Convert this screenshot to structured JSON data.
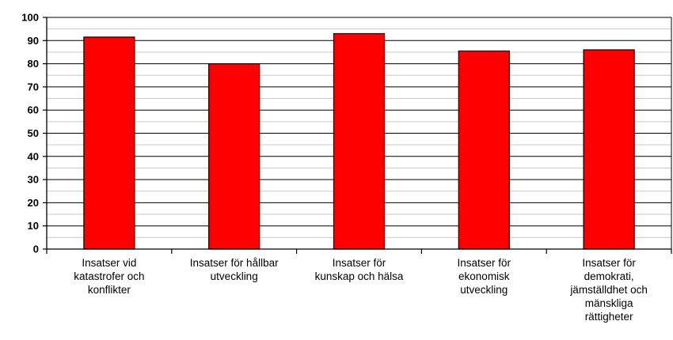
{
  "chart_data": {
    "type": "bar",
    "title": "",
    "xlabel": "",
    "ylabel": "",
    "ylim": [
      0,
      100
    ],
    "ytick_step": 10,
    "minor_grid_step": 5,
    "grid": true,
    "bar_color": "#ff0000",
    "categories": [
      "Insatser vid katastrofer och konflikter",
      "Insatser för hållbar utveckling",
      "Insatser för kunskap och hälsa",
      "Insatser för ekonomisk utveckling",
      "Insatser för demokrati, jämställdhet och mänskliga rättigheter"
    ],
    "category_label_lines": [
      [
        "Insatser vid",
        "katastrofer och",
        "konflikter"
      ],
      [
        "Insatser för hållbar",
        "utveckling"
      ],
      [
        "Insatser för",
        "kunskap och hälsa"
      ],
      [
        "Insatser för",
        "ekonomisk",
        "utveckling"
      ],
      [
        "Insatser för",
        "demokrati,",
        "jämställdhet och",
        "mänskliga",
        "rättigheter"
      ]
    ],
    "values": [
      91.5,
      80,
      93,
      85.5,
      86
    ]
  }
}
